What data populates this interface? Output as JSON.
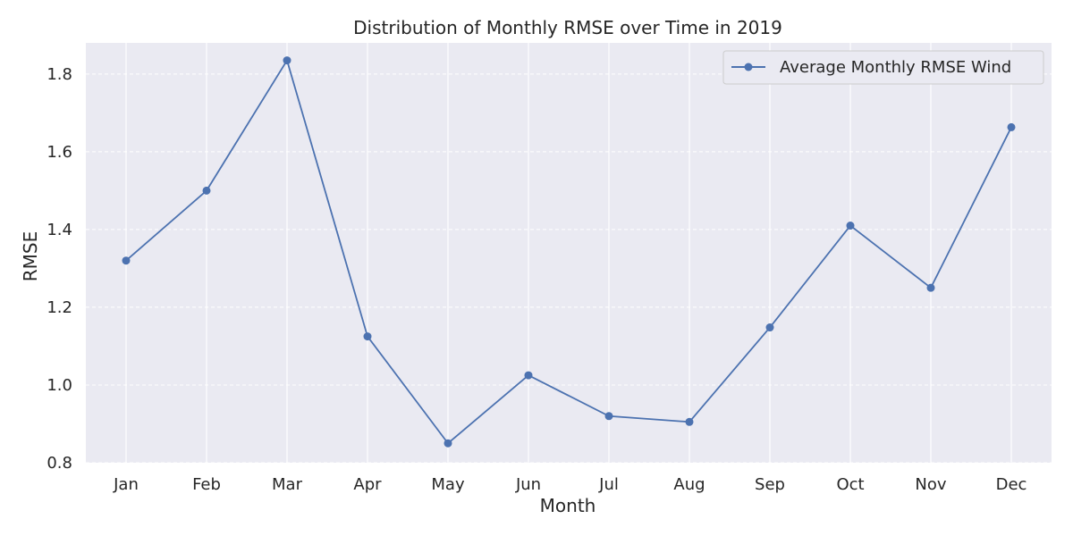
{
  "chart_data": {
    "type": "line",
    "title": "Distribution of Monthly RMSE over Time in 2019",
    "xlabel": "Month",
    "ylabel": "RMSE",
    "categories": [
      "Jan",
      "Feb",
      "Mar",
      "Apr",
      "May",
      "Jun",
      "Jul",
      "Aug",
      "Sep",
      "Oct",
      "Nov",
      "Dec"
    ],
    "series": [
      {
        "name": "Average Monthly RMSE Wind",
        "values": [
          1.32,
          1.5,
          1.835,
          1.125,
          0.85,
          1.025,
          0.92,
          0.905,
          1.148,
          1.41,
          1.25,
          1.663
        ]
      }
    ],
    "ylim": [
      0.8,
      1.88
    ],
    "yticks": [
      "0.8",
      "1.0",
      "1.2",
      "1.4",
      "1.6",
      "1.8"
    ],
    "legend_position": "top-right",
    "grid": true,
    "grid_style": "dashed horizontal, solid vertical",
    "colors": {
      "plot_background": "#EAEAF2",
      "grid": "#FFFFFF",
      "series": "#4C72B0"
    }
  }
}
